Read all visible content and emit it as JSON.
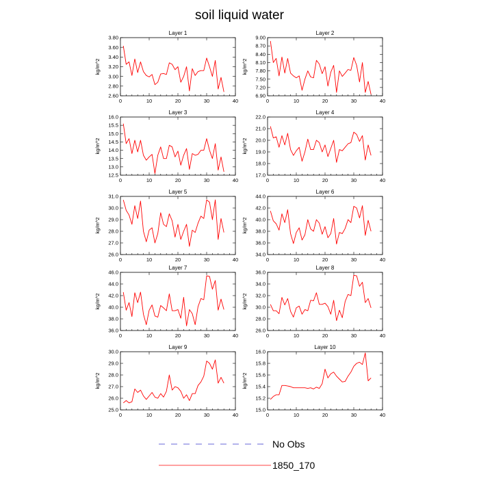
{
  "figure": {
    "title": "soil liquid water"
  },
  "legend": [
    {
      "label": "No Obs",
      "color": "#3333cc",
      "dash": "dashed"
    },
    {
      "label": "1850_170",
      "color": "#ff0000",
      "dash": "solid"
    }
  ],
  "chart_data": [
    {
      "type": "line",
      "title": "Layer 1",
      "xlabel": "",
      "ylabel": "kg/m^2",
      "xlim": [
        0,
        40
      ],
      "ylim": [
        2.6,
        3.8
      ],
      "xticks": [
        0,
        10,
        20,
        30,
        40
      ],
      "yticks": [
        2.6,
        2.8,
        3.0,
        3.2,
        3.4,
        3.6,
        3.8
      ],
      "ytick_labels": [
        "2.60",
        "2.80",
        "3.00",
        "3.20",
        "3.40",
        "3.60",
        "3.80"
      ],
      "x": [
        1,
        2,
        3,
        4,
        5,
        6,
        7,
        8,
        9,
        10,
        11,
        12,
        13,
        14,
        15,
        16,
        17,
        18,
        19,
        20,
        21,
        22,
        23,
        24,
        25,
        26,
        27,
        28,
        29,
        30,
        31,
        32,
        33,
        34,
        35,
        36
      ],
      "series": [
        {
          "name": "1850_170",
          "color": "#ff0000",
          "values": [
            3.63,
            3.25,
            3.3,
            3.02,
            3.36,
            3.08,
            3.3,
            3.1,
            3.02,
            2.99,
            3.04,
            2.83,
            2.88,
            3.05,
            3.06,
            3.04,
            3.28,
            3.25,
            3.14,
            3.2,
            2.88,
            3.0,
            3.2,
            2.7,
            3.16,
            3.02,
            3.1,
            3.12,
            3.12,
            3.38,
            3.2,
            3.0,
            3.33,
            2.74,
            2.98,
            2.68
          ]
        }
      ]
    },
    {
      "type": "line",
      "title": "Layer 2",
      "xlabel": "",
      "ylabel": "kg/m^2",
      "xlim": [
        0,
        40
      ],
      "ylim": [
        6.9,
        9.0
      ],
      "xticks": [
        0,
        10,
        20,
        30,
        40
      ],
      "yticks": [
        6.9,
        7.2,
        7.5,
        7.8,
        8.1,
        8.4,
        8.7,
        9.0
      ],
      "ytick_labels": [
        "6.90",
        "7.20",
        "7.50",
        "7.80",
        "8.10",
        "8.40",
        "8.70",
        "9.00"
      ],
      "x": [
        1,
        2,
        3,
        4,
        5,
        6,
        7,
        8,
        9,
        10,
        11,
        12,
        13,
        14,
        15,
        16,
        17,
        18,
        19,
        20,
        21,
        22,
        23,
        24,
        25,
        26,
        27,
        28,
        29,
        30,
        31,
        32,
        33,
        34,
        35,
        36
      ],
      "series": [
        {
          "name": "1850_170",
          "color": "#ff0000",
          "values": [
            8.88,
            8.1,
            8.25,
            7.62,
            8.3,
            7.72,
            8.25,
            7.72,
            7.62,
            7.55,
            7.62,
            7.1,
            7.5,
            7.8,
            7.58,
            7.55,
            8.18,
            8.05,
            7.7,
            7.95,
            7.25,
            7.75,
            8.0,
            7.02,
            7.8,
            7.6,
            7.72,
            7.85,
            7.82,
            8.28,
            8.0,
            7.4,
            8.1,
            7.02,
            7.42,
            6.95
          ]
        }
      ]
    },
    {
      "type": "line",
      "title": "Layer 3",
      "xlabel": "",
      "ylabel": "kg/m^2",
      "xlim": [
        0,
        40
      ],
      "ylim": [
        12.5,
        16.0
      ],
      "xticks": [
        0,
        10,
        20,
        30,
        40
      ],
      "yticks": [
        12.5,
        13.0,
        13.5,
        14.0,
        14.5,
        15.0,
        15.5,
        16.0
      ],
      "ytick_labels": [
        "12.5",
        "13.0",
        "13.5",
        "14.0",
        "14.5",
        "15.0",
        "15.5",
        "16.0"
      ],
      "x": [
        1,
        2,
        3,
        4,
        5,
        6,
        7,
        8,
        9,
        10,
        11,
        12,
        13,
        14,
        15,
        16,
        17,
        18,
        19,
        20,
        21,
        22,
        23,
        24,
        25,
        26,
        27,
        28,
        29,
        30,
        31,
        32,
        33,
        34,
        35,
        36
      ],
      "series": [
        {
          "name": "1850_170",
          "color": "#ff0000",
          "values": [
            15.6,
            14.4,
            14.7,
            13.8,
            14.6,
            13.9,
            14.6,
            13.7,
            13.4,
            13.6,
            13.75,
            12.6,
            13.7,
            14.2,
            13.5,
            13.5,
            14.3,
            14.2,
            13.6,
            13.95,
            13.1,
            13.7,
            14.1,
            12.85,
            13.8,
            13.7,
            13.75,
            14.0,
            14.0,
            14.7,
            14.0,
            13.5,
            14.4,
            12.8,
            13.6,
            12.7
          ]
        }
      ]
    },
    {
      "type": "line",
      "title": "Layer 4",
      "xlabel": "",
      "ylabel": "kg/m^2",
      "xlim": [
        0,
        40
      ],
      "ylim": [
        17.0,
        22.0
      ],
      "xticks": [
        0,
        10,
        20,
        30,
        40
      ],
      "yticks": [
        17.0,
        18.0,
        19.0,
        20.0,
        21.0,
        22.0
      ],
      "ytick_labels": [
        "17.0",
        "18.0",
        "19.0",
        "20.0",
        "21.0",
        "22.0"
      ],
      "x": [
        1,
        2,
        3,
        4,
        5,
        6,
        7,
        8,
        9,
        10,
        11,
        12,
        13,
        14,
        15,
        16,
        17,
        18,
        19,
        20,
        21,
        22,
        23,
        24,
        25,
        26,
        27,
        28,
        29,
        30,
        31,
        32,
        33,
        34,
        35,
        36
      ],
      "series": [
        {
          "name": "1850_170",
          "color": "#ff0000",
          "values": [
            21.2,
            20.2,
            20.3,
            19.4,
            20.4,
            19.6,
            20.6,
            19.2,
            18.7,
            19.1,
            19.4,
            18.2,
            19.0,
            20.1,
            19.2,
            19.2,
            20.0,
            19.8,
            19.0,
            19.6,
            18.6,
            19.3,
            20.0,
            18.1,
            19.2,
            19.1,
            19.4,
            19.7,
            19.8,
            20.7,
            20.5,
            19.9,
            20.4,
            18.3,
            19.6,
            18.7
          ]
        }
      ]
    },
    {
      "type": "line",
      "title": "Layer 5",
      "xlabel": "",
      "ylabel": "kg/m^2",
      "xlim": [
        0,
        40
      ],
      "ylim": [
        26.0,
        31.0
      ],
      "xticks": [
        0,
        10,
        20,
        30,
        40
      ],
      "yticks": [
        26.0,
        27.0,
        28.0,
        29.0,
        30.0,
        31.0
      ],
      "ytick_labels": [
        "26.0",
        "27.0",
        "28.0",
        "29.0",
        "30.0",
        "31.0"
      ],
      "x": [
        1,
        2,
        3,
        4,
        5,
        6,
        7,
        8,
        9,
        10,
        11,
        12,
        13,
        14,
        15,
        16,
        17,
        18,
        19,
        20,
        21,
        22,
        23,
        24,
        25,
        26,
        27,
        28,
        29,
        30,
        31,
        32,
        33,
        34,
        35,
        36
      ],
      "series": [
        {
          "name": "1850_170",
          "color": "#ff0000",
          "values": [
            30.7,
            29.8,
            29.4,
            28.6,
            30.2,
            29.1,
            30.6,
            28.0,
            27.1,
            28.1,
            28.3,
            27.0,
            27.8,
            29.6,
            28.6,
            28.4,
            29.5,
            28.9,
            27.5,
            28.6,
            27.3,
            28.0,
            28.6,
            26.7,
            28.1,
            27.9,
            28.7,
            29.3,
            29.1,
            30.7,
            30.5,
            29.0,
            30.7,
            27.3,
            29.1,
            27.9
          ]
        }
      ]
    },
    {
      "type": "line",
      "title": "Layer 6",
      "xlabel": "",
      "ylabel": "kg/m^2",
      "xlim": [
        0,
        40
      ],
      "ylim": [
        34.0,
        44.0
      ],
      "xticks": [
        0,
        10,
        20,
        30,
        40
      ],
      "yticks": [
        34.0,
        36.0,
        38.0,
        40.0,
        42.0,
        44.0
      ],
      "ytick_labels": [
        "34.0",
        "36.0",
        "38.0",
        "40.0",
        "42.0",
        "44.0"
      ],
      "x": [
        1,
        2,
        3,
        4,
        5,
        6,
        7,
        8,
        9,
        10,
        11,
        12,
        13,
        14,
        15,
        16,
        17,
        18,
        19,
        20,
        21,
        22,
        23,
        24,
        25,
        26,
        27,
        28,
        29,
        30,
        31,
        32,
        33,
        34,
        35,
        36
      ],
      "series": [
        {
          "name": "1850_170",
          "color": "#ff0000",
          "values": [
            41.5,
            39.8,
            39.3,
            38.2,
            41.0,
            39.5,
            41.7,
            37.6,
            35.9,
            37.8,
            38.6,
            36.5,
            37.4,
            40.0,
            38.4,
            38.0,
            40.0,
            39.4,
            37.5,
            38.8,
            36.9,
            37.6,
            40.2,
            35.8,
            37.8,
            37.6,
            38.5,
            40.0,
            39.5,
            42.3,
            42.0,
            40.3,
            42.4,
            37.3,
            39.9,
            38.0
          ]
        }
      ]
    },
    {
      "type": "line",
      "title": "Layer 7",
      "xlabel": "",
      "ylabel": "kg/m^2",
      "xlim": [
        0,
        40
      ],
      "ylim": [
        36.0,
        46.0
      ],
      "xticks": [
        0,
        10,
        20,
        30,
        40
      ],
      "yticks": [
        36.0,
        38.0,
        40.0,
        42.0,
        44.0,
        46.0
      ],
      "ytick_labels": [
        "36.0",
        "38.0",
        "40.0",
        "42.0",
        "44.0",
        "46.0"
      ],
      "x": [
        1,
        2,
        3,
        4,
        5,
        6,
        7,
        8,
        9,
        10,
        11,
        12,
        13,
        14,
        15,
        16,
        17,
        18,
        19,
        20,
        21,
        22,
        23,
        24,
        25,
        26,
        27,
        28,
        29,
        30,
        31,
        32,
        33,
        34,
        35,
        36
      ],
      "series": [
        {
          "name": "1850_170",
          "color": "#ff0000",
          "values": [
            42.6,
            39.5,
            40.8,
            38.4,
            42.5,
            40.8,
            42.6,
            38.8,
            37.0,
            39.5,
            40.4,
            38.5,
            38.3,
            40.3,
            39.9,
            39.4,
            42.3,
            39.4,
            39.4,
            39.6,
            38.1,
            41.7,
            36.8,
            39.6,
            38.9,
            37.0,
            40.1,
            41.5,
            41.3,
            45.4,
            45.3,
            43.1,
            44.6,
            39.5,
            41.4,
            39.6
          ]
        }
      ]
    },
    {
      "type": "line",
      "title": "Layer 8",
      "xlabel": "",
      "ylabel": "kg/m^2",
      "xlim": [
        0,
        40
      ],
      "ylim": [
        26.0,
        36.0
      ],
      "xticks": [
        0,
        10,
        20,
        30,
        40
      ],
      "yticks": [
        26.0,
        28.0,
        30.0,
        32.0,
        34.0,
        36.0
      ],
      "ytick_labels": [
        "26.0",
        "28.0",
        "30.0",
        "32.0",
        "34.0",
        "36.0"
      ],
      "x": [
        1,
        2,
        3,
        4,
        5,
        6,
        7,
        8,
        9,
        10,
        11,
        12,
        13,
        14,
        15,
        16,
        17,
        18,
        19,
        20,
        21,
        22,
        23,
        24,
        25,
        26,
        27,
        28,
        29,
        30,
        31,
        32,
        33,
        34,
        35,
        36
      ],
      "series": [
        {
          "name": "1850_170",
          "color": "#ff0000",
          "values": [
            30.5,
            29.4,
            29.4,
            28.9,
            31.7,
            30.4,
            31.5,
            29.3,
            28.3,
            29.9,
            30.2,
            28.8,
            29.6,
            29.4,
            31.2,
            31.1,
            32.5,
            30.5,
            30.5,
            30.7,
            30.1,
            28.8,
            31.2,
            27.7,
            29.5,
            28.2,
            31.0,
            32.2,
            32.0,
            35.5,
            35.4,
            33.6,
            34.3,
            30.8,
            31.5,
            29.9
          ]
        }
      ]
    },
    {
      "type": "line",
      "title": "Layer 9",
      "xlabel": "",
      "ylabel": "kg/m^2",
      "xlim": [
        0,
        40
      ],
      "ylim": [
        25.0,
        30.0
      ],
      "xticks": [
        0,
        10,
        20,
        30,
        40
      ],
      "yticks": [
        25.0,
        26.0,
        27.0,
        28.0,
        29.0,
        30.0
      ],
      "ytick_labels": [
        "25.0",
        "26.0",
        "27.0",
        "28.0",
        "29.0",
        "30.0"
      ],
      "x": [
        1,
        2,
        3,
        4,
        5,
        6,
        7,
        8,
        9,
        10,
        11,
        12,
        13,
        14,
        15,
        16,
        17,
        18,
        19,
        20,
        21,
        22,
        23,
        24,
        25,
        26,
        27,
        28,
        29,
        30,
        31,
        32,
        33,
        34,
        35,
        36
      ],
      "series": [
        {
          "name": "1850_170",
          "color": "#ff0000",
          "values": [
            25.6,
            25.8,
            25.6,
            25.7,
            26.8,
            26.5,
            26.7,
            26.2,
            25.9,
            26.2,
            26.5,
            26.1,
            26.0,
            26.4,
            26.1,
            26.6,
            28.0,
            26.7,
            27.0,
            26.9,
            26.6,
            26.0,
            26.3,
            25.8,
            26.4,
            26.4,
            27.1,
            27.4,
            27.9,
            29.2,
            29.0,
            28.5,
            29.3,
            27.3,
            27.8,
            27.3
          ]
        }
      ]
    },
    {
      "type": "line",
      "title": "Layer 10",
      "xlabel": "",
      "ylabel": "kg/m^2",
      "xlim": [
        0,
        40
      ],
      "ylim": [
        15.0,
        16.0
      ],
      "xticks": [
        0,
        10,
        20,
        30,
        40
      ],
      "yticks": [
        15.0,
        15.2,
        15.4,
        15.6,
        15.8,
        16.0
      ],
      "ytick_labels": [
        "15.0",
        "15.2",
        "15.4",
        "15.6",
        "15.8",
        "16.0"
      ],
      "x": [
        1,
        2,
        3,
        4,
        5,
        6,
        7,
        8,
        9,
        10,
        11,
        12,
        13,
        14,
        15,
        16,
        17,
        18,
        19,
        20,
        21,
        22,
        23,
        24,
        25,
        26,
        27,
        28,
        29,
        30,
        31,
        32,
        33,
        34,
        35,
        36
      ],
      "series": [
        {
          "name": "1850_170",
          "color": "#ff0000",
          "values": [
            15.18,
            15.23,
            15.26,
            15.26,
            15.42,
            15.42,
            15.41,
            15.4,
            15.38,
            15.38,
            15.38,
            15.38,
            15.38,
            15.37,
            15.38,
            15.36,
            15.39,
            15.37,
            15.45,
            15.7,
            15.55,
            15.62,
            15.65,
            15.58,
            15.53,
            15.48,
            15.49,
            15.58,
            15.65,
            15.75,
            15.8,
            15.82,
            15.78,
            15.98,
            15.5,
            15.55
          ]
        }
      ]
    }
  ]
}
